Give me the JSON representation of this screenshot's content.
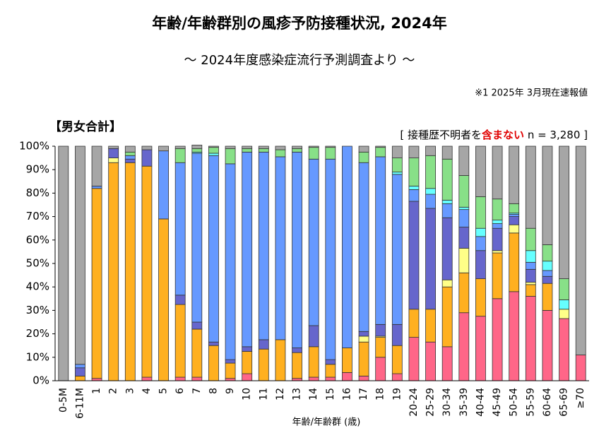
{
  "chart_data": {
    "type": "stacked_bar",
    "title": "年齢/年齢群別の風疹予防接種状況, 2024年",
    "subtitle": "～ 2024年度感染症流行予測調査より ～",
    "note": "※1 2025年 3月現在速報値",
    "group_label": "【男女合計】",
    "sample_note": {
      "prefix": "[ 接種歴不明者を",
      "highlight": "含まない",
      "suffix": " n = 3,280 ]"
    },
    "x_label": "年齢/年齢群 (歳)",
    "categories": [
      "0-5M",
      "6-11M",
      "1",
      "2",
      "3",
      "4",
      "5",
      "6",
      "7",
      "8",
      "9",
      "10",
      "11",
      "12",
      "13",
      "14",
      "15",
      "16",
      "17",
      "18",
      "19",
      "20-24",
      "25-29",
      "30-34",
      "35-39",
      "40-44",
      "45-49",
      "50-54",
      "55-59",
      "60-64",
      "65-69",
      "≥70"
    ],
    "ylim": [
      0,
      100
    ],
    "yticks": [
      {
        "value": 0,
        "label": "0%"
      },
      {
        "value": 10,
        "label": "10%"
      },
      {
        "value": 20,
        "label": "20%"
      },
      {
        "value": 30,
        "label": "30%"
      },
      {
        "value": 40,
        "label": "40%"
      },
      {
        "value": 50,
        "label": "50%"
      },
      {
        "value": 60,
        "label": "60%"
      },
      {
        "value": 70,
        "label": "70%"
      },
      {
        "value": 80,
        "label": "80%"
      },
      {
        "value": 90,
        "label": "90%"
      },
      {
        "value": 100,
        "label": "100%"
      }
    ],
    "grid": false,
    "series": [
      {
        "color": "#ff6688",
        "values": [
          0,
          0,
          1,
          0,
          0,
          1.5,
          0,
          1.5,
          1.5,
          0,
          1,
          3,
          0,
          0,
          1,
          1.5,
          1.5,
          3.5,
          2,
          10,
          3,
          18.5,
          16.5,
          14.5,
          29,
          27.5,
          35,
          38,
          36,
          30,
          26.5,
          11
        ]
      },
      {
        "color": "#ffb020",
        "values": [
          0,
          2,
          81,
          93,
          93,
          90,
          69,
          31,
          20.5,
          15,
          6.5,
          9.5,
          13.5,
          17.5,
          11,
          13,
          5.5,
          10.5,
          14.5,
          8.5,
          12,
          12,
          14,
          25.5,
          17,
          16,
          19.5,
          25,
          5,
          11.5,
          0,
          0
        ]
      },
      {
        "color": "#ffff88",
        "values": [
          0,
          0,
          0,
          2,
          0,
          0,
          0,
          0,
          0,
          0,
          0,
          0,
          0,
          0,
          0,
          0,
          0,
          0,
          2.5,
          0.5,
          0,
          0,
          0,
          3,
          10.5,
          0,
          1,
          3.5,
          1,
          0,
          4,
          0
        ]
      },
      {
        "color": "#6666cc",
        "values": [
          0,
          3.5,
          0,
          4,
          1.5,
          7,
          0,
          4,
          3,
          1.5,
          1.5,
          2,
          4,
          0,
          2,
          9,
          2,
          0,
          2,
          5,
          9,
          46,
          43,
          26.5,
          9,
          12,
          9.5,
          3.5,
          5.5,
          3,
          0,
          0
        ]
      },
      {
        "color": "#6699ff",
        "values": [
          0,
          1.5,
          1,
          0,
          1.5,
          0,
          29,
          56.5,
          72,
          79.5,
          83.5,
          83,
          80,
          78,
          83.5,
          71,
          85.5,
          86,
          72,
          71.5,
          64,
          5,
          6,
          6,
          7.5,
          6,
          2,
          1,
          3,
          2.5,
          0,
          0
        ]
      },
      {
        "color": "#66ffff",
        "values": [
          0,
          0,
          0,
          0,
          0,
          0,
          0,
          0,
          0.5,
          1,
          0,
          0,
          0,
          0,
          0,
          0,
          0,
          0,
          0,
          0,
          1,
          1.5,
          2.5,
          1.5,
          1,
          3.5,
          1.5,
          0.5,
          5,
          4,
          4,
          0
        ]
      },
      {
        "color": "#88e088",
        "values": [
          0,
          0,
          0,
          0,
          1.5,
          0,
          0,
          6,
          1.5,
          2.5,
          6.5,
          1.5,
          1.5,
          3,
          1.5,
          5,
          5,
          0,
          4.5,
          4,
          6,
          12,
          14,
          17.5,
          13.5,
          13.5,
          9,
          4,
          9.5,
          7,
          9,
          0
        ]
      },
      {
        "color": "#a6a6a6",
        "values": [
          100,
          93,
          17,
          1,
          2.5,
          1.5,
          2,
          1,
          1.5,
          0.5,
          1,
          1,
          1,
          1.5,
          1,
          0.5,
          0.5,
          0,
          2.5,
          0.5,
          5,
          5,
          4,
          5.5,
          12.5,
          21.5,
          22.5,
          24.5,
          35,
          42,
          56.5,
          89
        ]
      }
    ]
  }
}
